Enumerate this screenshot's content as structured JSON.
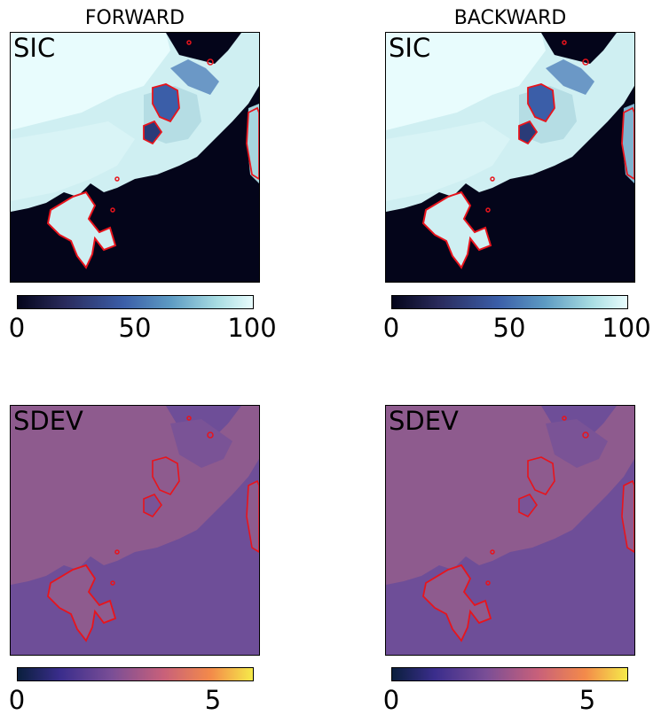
{
  "columns": [
    "FORWARD",
    "BACKWARD"
  ],
  "rows": [
    {
      "label": "SIC",
      "colormap": "ice",
      "cbar_ticks": [
        "0",
        "50",
        "100"
      ],
      "cbar_tick_values": [
        0,
        50,
        100
      ],
      "vmin": 0,
      "vmax": 100
    },
    {
      "label": "SDEV",
      "colormap": "plasma-like",
      "cbar_ticks": [
        "0",
        "5"
      ],
      "cbar_tick_values": [
        0,
        5
      ],
      "vmin": 0,
      "vmax": 6
    }
  ],
  "colors": {
    "ice_low": "#04051a",
    "ice_mid": "#3b5ea8",
    "ice_high": "#e8fcfd",
    "sdev_land": "#8e5b8e",
    "sdev_ocean": "#6e4e98",
    "coastline": "#e8141c"
  }
}
